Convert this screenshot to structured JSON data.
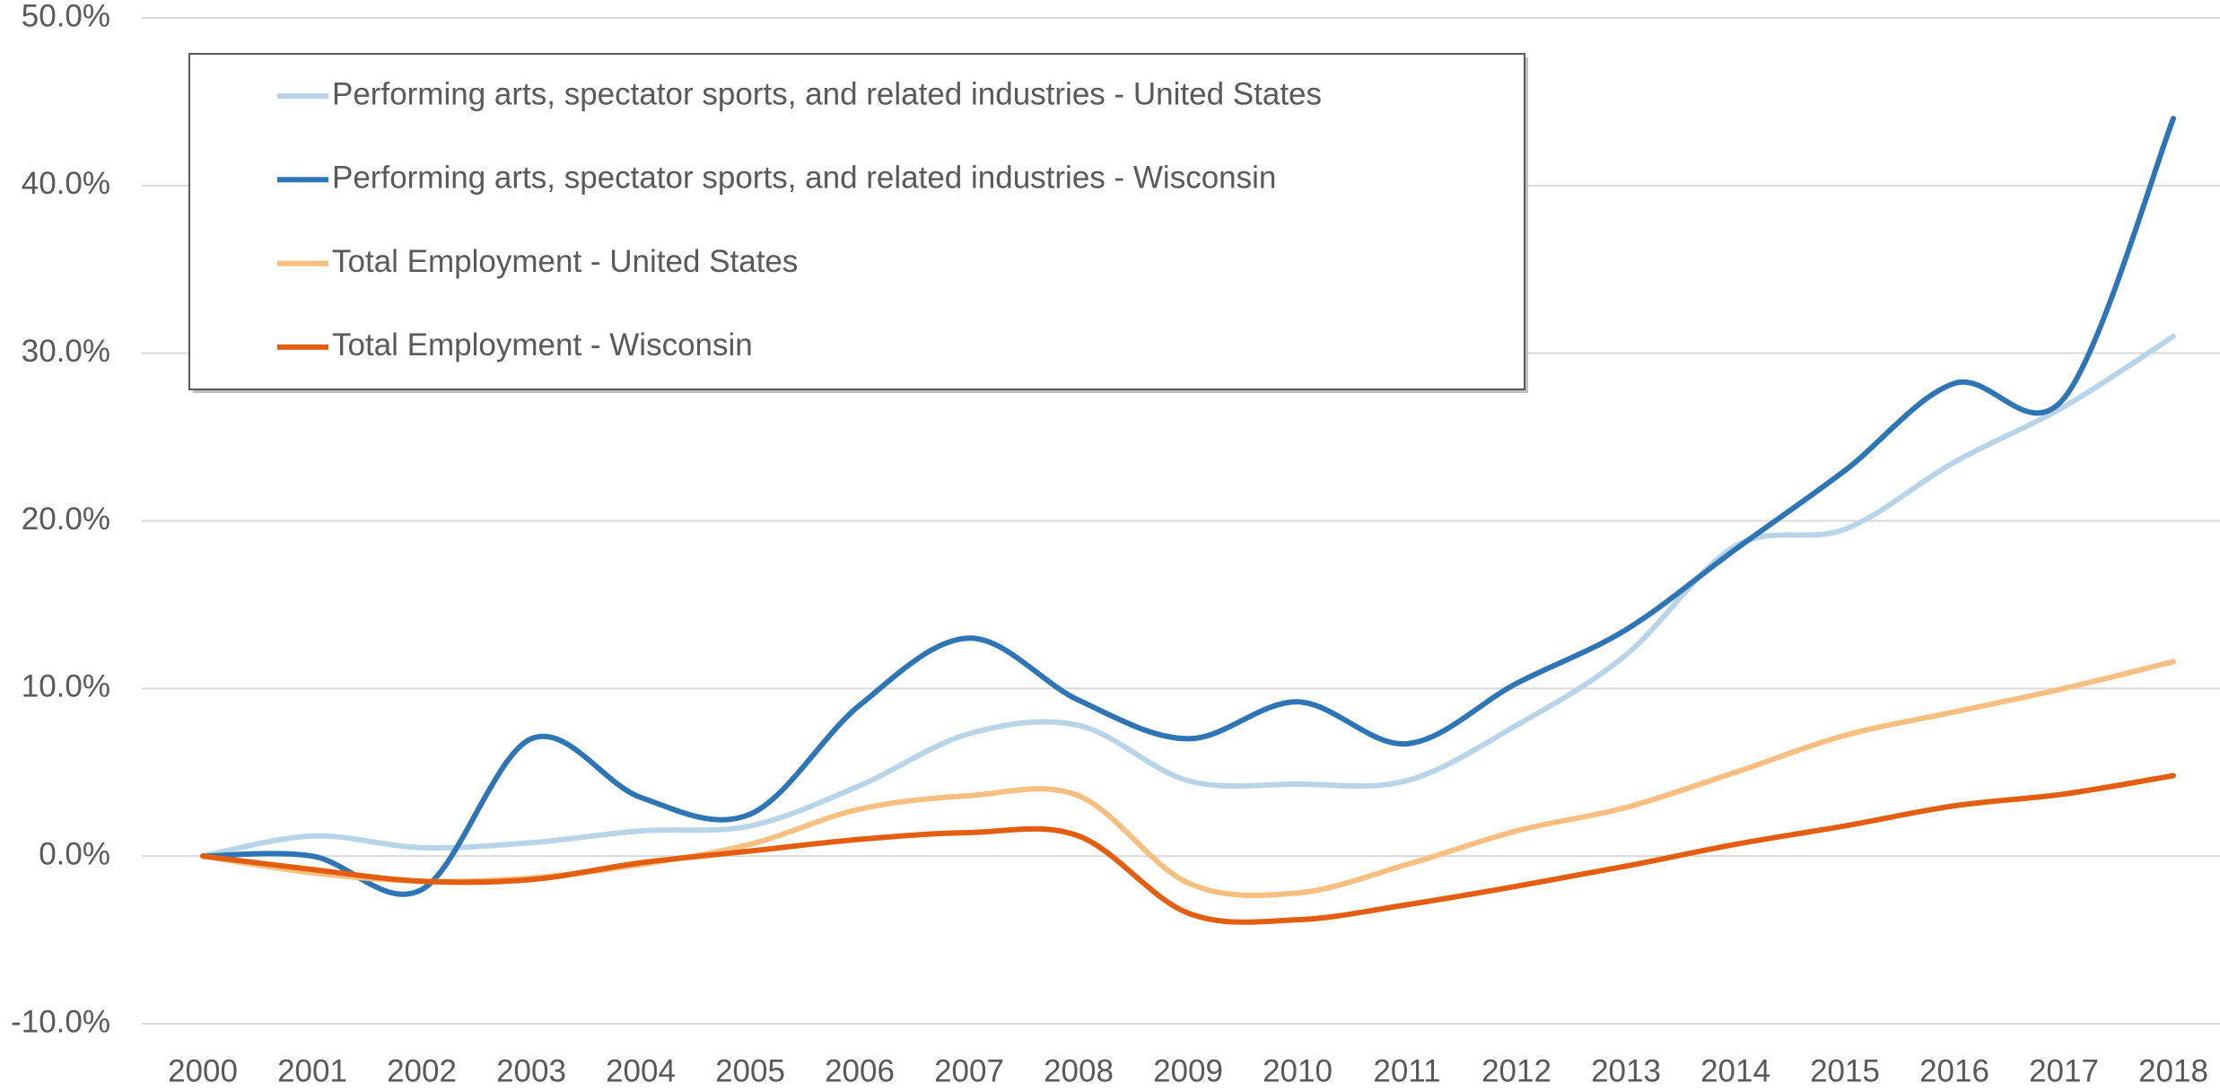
{
  "chart_data": {
    "type": "line",
    "categories": [
      "2000",
      "2001",
      "2002",
      "2003",
      "2004",
      "2005",
      "2006",
      "2007",
      "2008",
      "2009",
      "2010",
      "2011",
      "2012",
      "2013",
      "2014",
      "2015",
      "2016",
      "2017",
      "2018"
    ],
    "series": [
      {
        "name": "Performing arts, spectator sports, and related industries - United States",
        "color": "#b8d4e8",
        "values": [
          0,
          1.2,
          0.5,
          0.8,
          1.5,
          1.8,
          4.2,
          7.3,
          7.8,
          4.5,
          4.3,
          4.5,
          7.8,
          12,
          18.5,
          19.5,
          23.5,
          26.8,
          31
        ]
      },
      {
        "name": "Performing arts, spectator sports, and related industries - Wisconsin",
        "color": "#2e75b6",
        "values": [
          0,
          0,
          -2,
          7,
          3.5,
          2.5,
          9,
          13,
          9.3,
          7,
          9.2,
          6.7,
          10.3,
          13.5,
          18.3,
          23,
          28.2,
          27.3,
          44
        ]
      },
      {
        "name": "Total Employment - United States",
        "color": "#f8bf80",
        "values": [
          0,
          -1,
          -1.5,
          -1.3,
          -0.5,
          0.7,
          2.8,
          3.6,
          3.6,
          -1.6,
          -2.2,
          -0.5,
          1.5,
          2.9,
          5,
          7.2,
          8.6,
          10,
          11.6
        ]
      },
      {
        "name": "Total Employment - Wisconsin",
        "color": "#e35e10",
        "values": [
          0,
          -0.8,
          -1.5,
          -1.4,
          -0.4,
          0.3,
          1,
          1.4,
          1.2,
          -3.4,
          -3.8,
          -2.9,
          -1.8,
          -0.6,
          0.7,
          1.8,
          3,
          3.7,
          4.8
        ]
      }
    ],
    "ylim": [
      -10,
      50
    ],
    "yticks": [
      {
        "value": -10,
        "label": "-10.0%"
      },
      {
        "value": 0,
        "label": "0.0%"
      },
      {
        "value": 10,
        "label": "10.0%"
      },
      {
        "value": 20,
        "label": "20.0%"
      },
      {
        "value": 30,
        "label": "30.0%"
      },
      {
        "value": 40,
        "label": "40.0%"
      },
      {
        "value": 50,
        "label": "50.0%"
      }
    ],
    "grid": true,
    "smooth": true,
    "legend": "top-left"
  }
}
